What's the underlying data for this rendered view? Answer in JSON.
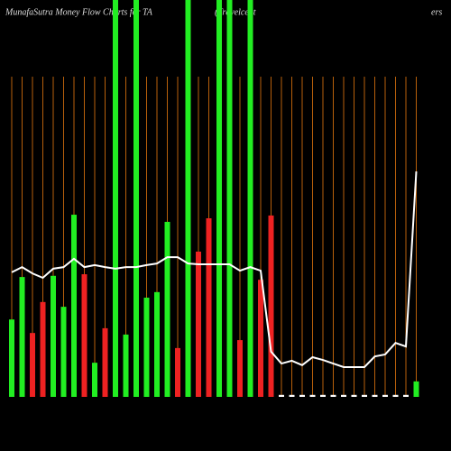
{
  "chart_data": {
    "type": "bar",
    "title": "MunafaSutra  Money Flow  Charts for TA",
    "subtitle": "(Travelcent",
    "subtitle_end": "ers",
    "ylim": [
      0,
      100
    ],
    "grid_color": "#b8600b",
    "line_color": "#ffffff",
    "series": [
      {
        "name": "Money Flow",
        "values": [
          19.5,
          30.2,
          16.1,
          23.9,
          30.5,
          22.7,
          45.9,
          30.9,
          8.6,
          17.3,
          100,
          15.7,
          100,
          25,
          26.4,
          44.1,
          12.3,
          100,
          36.6,
          45,
          100,
          100,
          14.3,
          100,
          29.5,
          45.7,
          0.5,
          0.5,
          0.5,
          0.5,
          0.5,
          0.5,
          0.5,
          0.5,
          0.5,
          0.5,
          0.5,
          0.5,
          0.5,
          3.9
        ],
        "colors": [
          "#22ee22",
          "#22ee22",
          "#ee2222",
          "#ee2222",
          "#22ee22",
          "#22ee22",
          "#22ee22",
          "#ee2222",
          "#22ee22",
          "#ee2222",
          "#22ee22",
          "#22ee22",
          "#22ee22",
          "#22ee22",
          "#22ee22",
          "#22ee22",
          "#ee2222",
          "#22ee22",
          "#ee2222",
          "#ee2222",
          "#22ee22",
          "#22ee22",
          "#ee2222",
          "#22ee22",
          "#ee2222",
          "#ee2222",
          "#ffffff",
          "#ffffff",
          "#ffffff",
          "#ffffff",
          "#ffffff",
          "#ffffff",
          "#ffffff",
          "#ffffff",
          "#ffffff",
          "#ffffff",
          "#ffffff",
          "#ffffff",
          "#ffffff",
          "#22ee22"
        ]
      },
      {
        "name": "Price",
        "values": [
          31.4,
          32.7,
          31.1,
          30,
          32.3,
          32.7,
          34.8,
          32.7,
          33.2,
          32.7,
          32.3,
          32.7,
          32.7,
          33.2,
          33.6,
          35.2,
          35.2,
          33.6,
          33.4,
          33.4,
          33.4,
          33.4,
          31.8,
          32.7,
          31.8,
          11.4,
          8.4,
          9.1,
          8,
          10,
          9.3,
          8.4,
          7.5,
          7.5,
          7.5,
          10.2,
          10.7,
          13.6,
          12.7,
          56.8
        ]
      }
    ]
  }
}
